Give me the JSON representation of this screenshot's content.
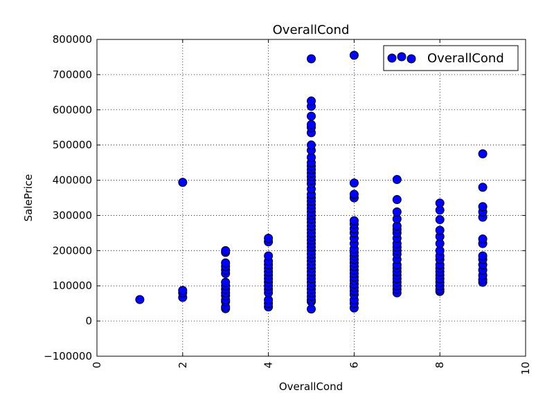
{
  "chart_data": {
    "type": "scatter",
    "title": "OverallCond",
    "xlabel": "OverallCond",
    "ylabel": "SalePrice",
    "xlim": [
      0,
      10
    ],
    "ylim": [
      -100000,
      800000
    ],
    "x_ticks": [
      0,
      2,
      4,
      6,
      8,
      10
    ],
    "x_tick_labels": [
      "0",
      "2",
      "4",
      "6",
      "8",
      "10"
    ],
    "y_ticks": [
      -100000,
      0,
      100000,
      200000,
      300000,
      400000,
      500000,
      600000,
      700000,
      800000
    ],
    "y_tick_labels": [
      "−100000",
      "0",
      "100000",
      "200000",
      "300000",
      "400000",
      "500000",
      "600000",
      "700000",
      "800000"
    ],
    "grid": true,
    "legend_position": "top-right",
    "series": [
      {
        "name": "OverallCond",
        "color": "#0000ff",
        "edge_color": "#000000",
        "points": [
          [
            1,
            61000
          ],
          [
            2,
            67000
          ],
          [
            2,
            80000
          ],
          [
            2,
            87000
          ],
          [
            2,
            394000
          ],
          [
            3,
            35000
          ],
          [
            3,
            40000
          ],
          [
            3,
            55000
          ],
          [
            3,
            60000
          ],
          [
            3,
            72000
          ],
          [
            3,
            80000
          ],
          [
            3,
            90000
          ],
          [
            3,
            100000
          ],
          [
            3,
            110000
          ],
          [
            3,
            135000
          ],
          [
            3,
            145000
          ],
          [
            3,
            155000
          ],
          [
            3,
            165000
          ],
          [
            3,
            195000
          ],
          [
            3,
            200000
          ],
          [
            4,
            40000
          ],
          [
            4,
            50000
          ],
          [
            4,
            60000
          ],
          [
            4,
            80000
          ],
          [
            4,
            90000
          ],
          [
            4,
            100000
          ],
          [
            4,
            110000
          ],
          [
            4,
            120000
          ],
          [
            4,
            130000
          ],
          [
            4,
            140000
          ],
          [
            4,
            150000
          ],
          [
            4,
            160000
          ],
          [
            4,
            170000
          ],
          [
            4,
            185000
          ],
          [
            4,
            225000
          ],
          [
            4,
            235000
          ],
          [
            5,
            34000
          ],
          [
            5,
            55000
          ],
          [
            5,
            60000
          ],
          [
            5,
            70000
          ],
          [
            5,
            80000
          ],
          [
            5,
            90000
          ],
          [
            5,
            100000
          ],
          [
            5,
            110000
          ],
          [
            5,
            120000
          ],
          [
            5,
            130000
          ],
          [
            5,
            140000
          ],
          [
            5,
            150000
          ],
          [
            5,
            160000
          ],
          [
            5,
            170000
          ],
          [
            5,
            180000
          ],
          [
            5,
            190000
          ],
          [
            5,
            200000
          ],
          [
            5,
            210000
          ],
          [
            5,
            220000
          ],
          [
            5,
            230000
          ],
          [
            5,
            240000
          ],
          [
            5,
            250000
          ],
          [
            5,
            260000
          ],
          [
            5,
            270000
          ],
          [
            5,
            280000
          ],
          [
            5,
            290000
          ],
          [
            5,
            300000
          ],
          [
            5,
            310000
          ],
          [
            5,
            320000
          ],
          [
            5,
            330000
          ],
          [
            5,
            340000
          ],
          [
            5,
            350000
          ],
          [
            5,
            360000
          ],
          [
            5,
            375000
          ],
          [
            5,
            390000
          ],
          [
            5,
            400000
          ],
          [
            5,
            410000
          ],
          [
            5,
            420000
          ],
          [
            5,
            430000
          ],
          [
            5,
            440000
          ],
          [
            5,
            450000
          ],
          [
            5,
            465000
          ],
          [
            5,
            485000
          ],
          [
            5,
            500000
          ],
          [
            5,
            535000
          ],
          [
            5,
            550000
          ],
          [
            5,
            558000
          ],
          [
            5,
            582000
          ],
          [
            5,
            610000
          ],
          [
            5,
            625000
          ],
          [
            5,
            745000
          ],
          [
            6,
            37000
          ],
          [
            6,
            50000
          ],
          [
            6,
            60000
          ],
          [
            6,
            75000
          ],
          [
            6,
            85000
          ],
          [
            6,
            95000
          ],
          [
            6,
            105000
          ],
          [
            6,
            115000
          ],
          [
            6,
            125000
          ],
          [
            6,
            135000
          ],
          [
            6,
            145000
          ],
          [
            6,
            155000
          ],
          [
            6,
            165000
          ],
          [
            6,
            175000
          ],
          [
            6,
            185000
          ],
          [
            6,
            195000
          ],
          [
            6,
            205000
          ],
          [
            6,
            220000
          ],
          [
            6,
            235000
          ],
          [
            6,
            250000
          ],
          [
            6,
            262000
          ],
          [
            6,
            275000
          ],
          [
            6,
            285000
          ],
          [
            6,
            350000
          ],
          [
            6,
            360000
          ],
          [
            6,
            392000
          ],
          [
            6,
            755000
          ],
          [
            7,
            80000
          ],
          [
            7,
            90000
          ],
          [
            7,
            100000
          ],
          [
            7,
            110000
          ],
          [
            7,
            120000
          ],
          [
            7,
            130000
          ],
          [
            7,
            140000
          ],
          [
            7,
            150000
          ],
          [
            7,
            160000
          ],
          [
            7,
            175000
          ],
          [
            7,
            190000
          ],
          [
            7,
            200000
          ],
          [
            7,
            210000
          ],
          [
            7,
            220000
          ],
          [
            7,
            235000
          ],
          [
            7,
            250000
          ],
          [
            7,
            260000
          ],
          [
            7,
            270000
          ],
          [
            7,
            290000
          ],
          [
            7,
            310000
          ],
          [
            7,
            345000
          ],
          [
            7,
            402000
          ],
          [
            8,
            84000
          ],
          [
            8,
            90000
          ],
          [
            8,
            100000
          ],
          [
            8,
            110000
          ],
          [
            8,
            120000
          ],
          [
            8,
            130000
          ],
          [
            8,
            140000
          ],
          [
            8,
            150000
          ],
          [
            8,
            160000
          ],
          [
            8,
            175000
          ],
          [
            8,
            185000
          ],
          [
            8,
            200000
          ],
          [
            8,
            220000
          ],
          [
            8,
            240000
          ],
          [
            8,
            258000
          ],
          [
            8,
            288000
          ],
          [
            8,
            315000
          ],
          [
            8,
            335000
          ],
          [
            9,
            110000
          ],
          [
            9,
            118000
          ],
          [
            9,
            130000
          ],
          [
            9,
            145000
          ],
          [
            9,
            160000
          ],
          [
            9,
            175000
          ],
          [
            9,
            185000
          ],
          [
            9,
            220000
          ],
          [
            9,
            233000
          ],
          [
            9,
            295000
          ],
          [
            9,
            310000
          ],
          [
            9,
            325000
          ],
          [
            9,
            380000
          ],
          [
            9,
            475000
          ]
        ]
      }
    ]
  }
}
